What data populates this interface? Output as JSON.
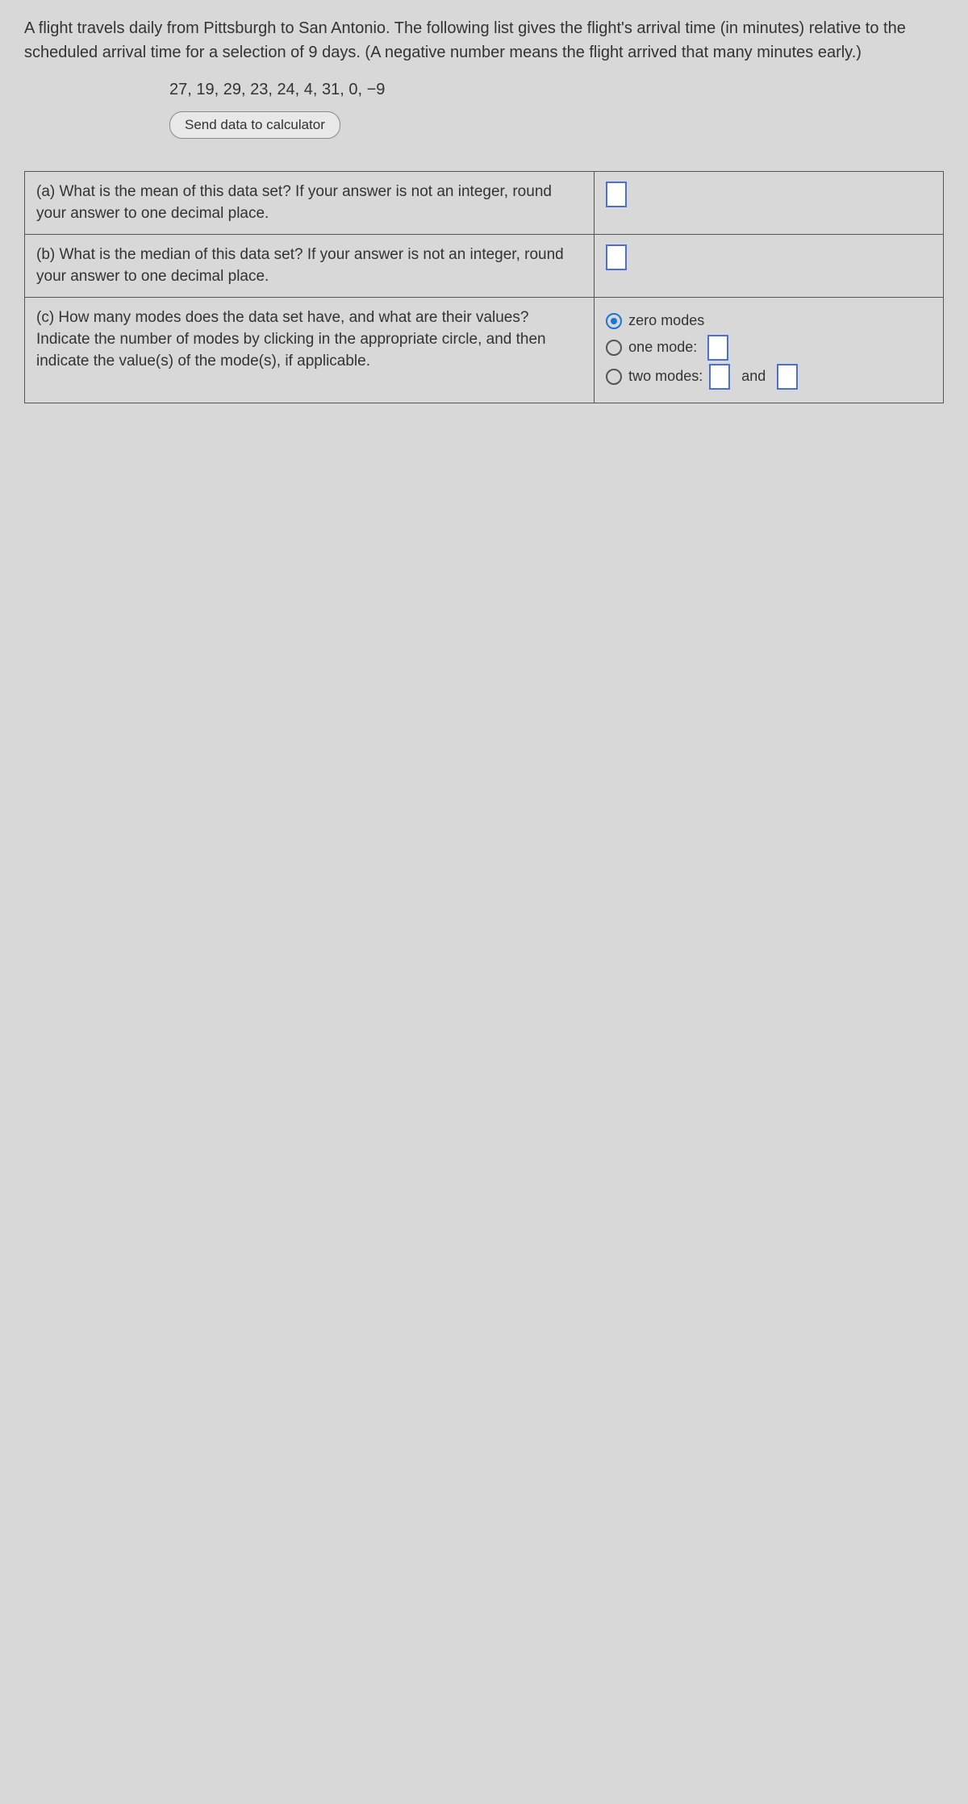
{
  "intro": "A flight travels daily from Pittsburgh to San Antonio. The following list gives the flight's arrival time (in minutes) relative to the scheduled arrival time for a selection of 9 days. (A negative number means the flight arrived that many minutes early.)",
  "data_values": "27, 19, 29, 23, 24, 4, 31, 0, −9",
  "send_button": "Send data to calculator",
  "questions": {
    "a": "(a) What is the mean of this data set? If your answer is not an integer, round your answer to one decimal place.",
    "b": "(b) What is the median of this data set? If your answer is not an integer, round your answer to one decimal place.",
    "c": "(c) How many modes does the data set have, and what are their values? Indicate the number of modes by clicking in the appropriate circle, and then indicate the value(s) of the mode(s), if applicable."
  },
  "mode_options": {
    "zero": "zero modes",
    "one": "one mode:",
    "two": "two modes:",
    "and": "and"
  }
}
